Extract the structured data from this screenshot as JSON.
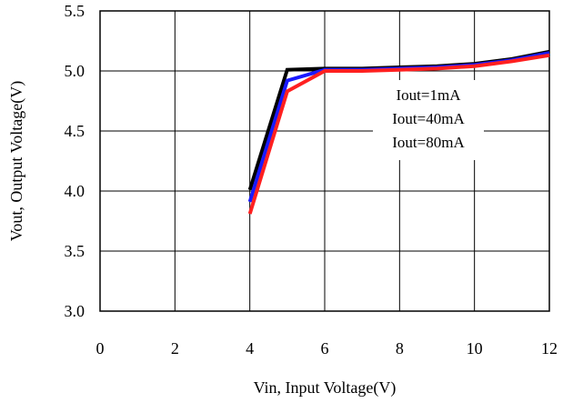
{
  "chart_data": {
    "type": "line",
    "xlabel": "Vin, Input Voltage(V)",
    "ylabel": "Vout, Output Voltage(V)",
    "xlim": [
      0,
      12
    ],
    "ylim": [
      3.0,
      5.5
    ],
    "xticks": [
      0,
      2,
      4,
      6,
      8,
      10,
      12
    ],
    "yticks": [
      3.0,
      3.5,
      4.0,
      4.5,
      5.0,
      5.5
    ],
    "xtick_labels": [
      "0",
      "2",
      "4",
      "6",
      "8",
      "10",
      "12"
    ],
    "ytick_labels": [
      "3.0",
      "3.5",
      "4.0",
      "4.5",
      "5.0",
      "5.5"
    ],
    "grid": true,
    "legend": "center-right",
    "series": [
      {
        "name": "Iout=1mA",
        "color": "#000000",
        "x": [
          4,
          5,
          6,
          7,
          8,
          9,
          10,
          11,
          12
        ],
        "y": [
          4.01,
          5.01,
          5.02,
          5.02,
          5.03,
          5.04,
          5.06,
          5.1,
          5.16
        ]
      },
      {
        "name": "Iout=40mA",
        "color": "#1a1aff",
        "x": [
          4,
          5,
          6,
          7,
          8,
          9,
          10,
          11,
          12
        ],
        "y": [
          3.91,
          4.92,
          5.01,
          5.01,
          5.02,
          5.03,
          5.05,
          5.09,
          5.15
        ]
      },
      {
        "name": "Iout=80mA",
        "color": "#ff2020",
        "x": [
          4,
          5,
          6,
          7,
          8,
          9,
          10,
          11,
          12
        ],
        "y": [
          3.81,
          4.83,
          5.0,
          5.0,
          5.01,
          5.02,
          5.04,
          5.08,
          5.13
        ]
      }
    ]
  }
}
